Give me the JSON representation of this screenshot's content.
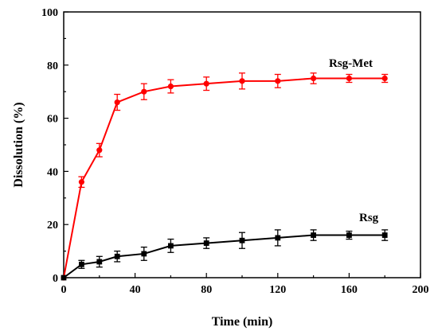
{
  "chart_data": {
    "type": "line",
    "xlabel": "Time (min)",
    "ylabel": "Dissolution (%)",
    "xlim": [
      0,
      200
    ],
    "ylim": [
      0,
      100
    ],
    "xticks": [
      0,
      40,
      80,
      120,
      160,
      200
    ],
    "yticks": [
      0,
      20,
      40,
      60,
      80,
      100
    ],
    "grid": false,
    "series": [
      {
        "name": "Rsg-Met",
        "color": "#ff0000",
        "marker": "circle",
        "x": [
          0,
          10,
          20,
          30,
          45,
          60,
          80,
          100,
          120,
          140,
          160,
          180
        ],
        "y": [
          0,
          36,
          48,
          66,
          70,
          72,
          73,
          74,
          74,
          75,
          75,
          75
        ],
        "error": [
          0,
          2,
          2.5,
          3,
          3,
          2.5,
          2.5,
          3,
          2.5,
          2,
          1.5,
          1.5
        ]
      },
      {
        "name": "Rsg",
        "color": "#000000",
        "marker": "square",
        "x": [
          0,
          10,
          20,
          30,
          45,
          60,
          80,
          100,
          120,
          140,
          160,
          180
        ],
        "y": [
          0,
          5,
          6,
          8,
          9,
          12,
          13,
          14,
          15,
          16,
          16,
          16
        ],
        "error": [
          0,
          1.5,
          2,
          2,
          2.5,
          2.5,
          2,
          3,
          3,
          2,
          1.5,
          2
        ]
      }
    ]
  }
}
